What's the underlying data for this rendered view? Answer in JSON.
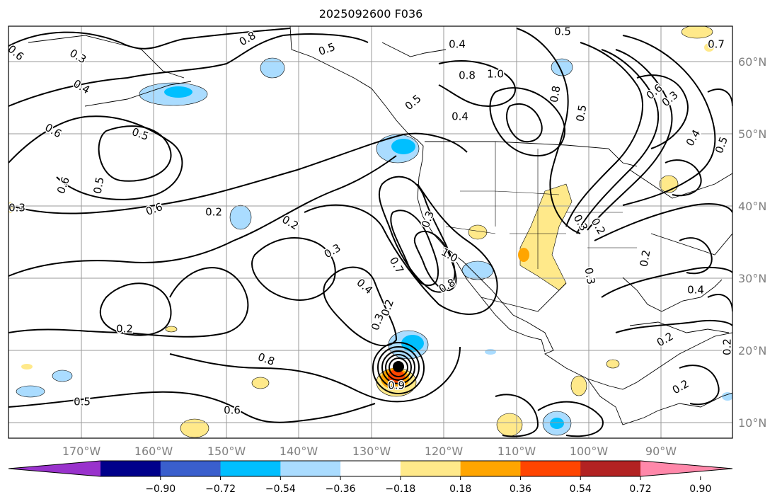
{
  "title": "2025092600 F036",
  "map": {
    "lon_ticks": [
      "170°W",
      "160°W",
      "150°W",
      "140°W",
      "130°W",
      "120°W",
      "110°W",
      "100°W",
      "90°W"
    ],
    "lat_ticks": [
      "60°N",
      "50°N",
      "40°N",
      "30°N",
      "20°N",
      "10°N"
    ],
    "contour_labels": [
      "0.8",
      "0.5",
      "0.4",
      "0.6",
      "0.3",
      "0.5",
      "0.7",
      "0.4",
      "0.6",
      "0.5",
      "0.5",
      "0.6",
      "0.3",
      "0.2",
      "0.6",
      "0.2",
      "0.3",
      "0.5",
      "0.4",
      "0.8",
      "1.0",
      "0.8",
      "0.5",
      "0.6",
      "0.3",
      "0.4",
      "0.5",
      "0.3",
      "1.0",
      "0.8",
      "0.7",
      "0.4",
      "0.3",
      "0.2",
      "0.2",
      "0.8",
      "0.5",
      "0.6",
      "0.3",
      "0.2",
      "0.2",
      "0.4",
      "0.3",
      "0.2",
      "0.2",
      "0.2",
      "0.9"
    ],
    "fill_colors": {
      "neg_strong": "#00bfff",
      "neg_weak": "#aadcff",
      "pos_weak": "#ffe98a",
      "pos_mid": "#ffa500",
      "pos_strong": "#ff4500"
    },
    "grid": true,
    "storm_marker": "black-dot"
  },
  "colorbar": {
    "ticks": [
      "−0.90",
      "−0.72",
      "−0.54",
      "−0.36",
      "−0.18",
      "0.18",
      "0.36",
      "0.54",
      "0.72",
      "0.90"
    ],
    "colors": [
      "#9932cc",
      "#00008b",
      "#3a5fcd",
      "#00bfff",
      "#aadcff",
      "#ffffff",
      "#ffe98a",
      "#ffa500",
      "#ff4500",
      "#b22222",
      "#ff88aa"
    ]
  }
}
